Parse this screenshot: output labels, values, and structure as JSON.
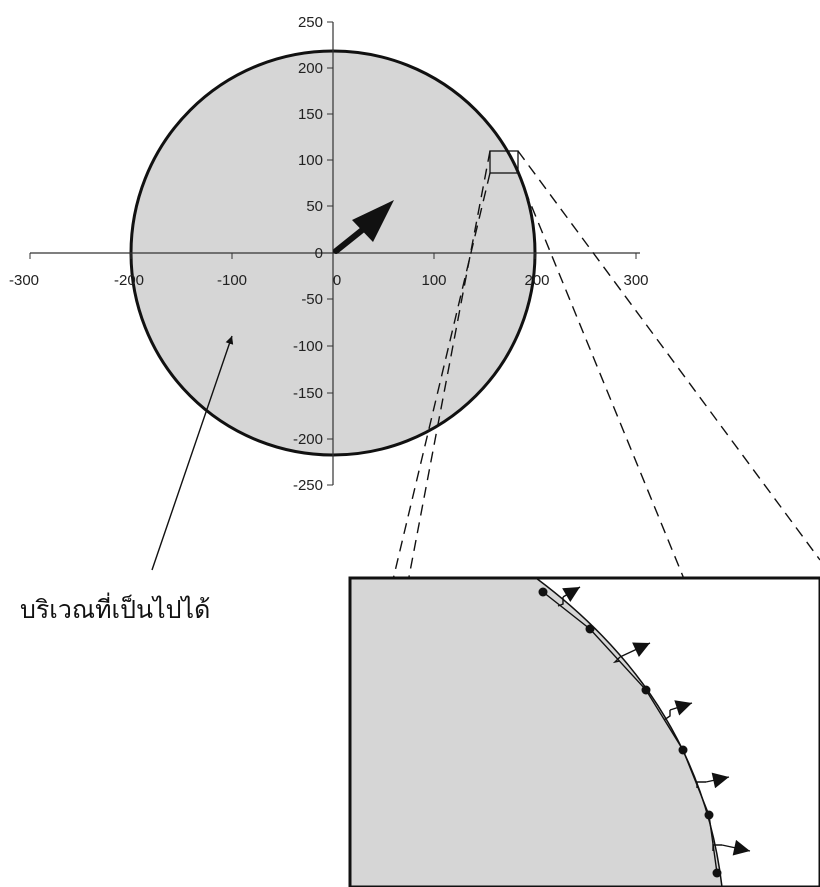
{
  "colors": {
    "region_fill": "#d6d6d6",
    "boundary": "#111111",
    "axis": "#333333",
    "background": "#ffffff"
  },
  "chart_data": {
    "type": "scatter",
    "xlim": [
      -300,
      300
    ],
    "ylim": [
      -250,
      250
    ],
    "x_ticks": [
      "-300",
      "-200",
      "-100",
      "0",
      "100",
      "200",
      "300"
    ],
    "y_ticks": [
      "250",
      "200",
      "150",
      "100",
      "50",
      "0",
      "-50",
      "-100",
      "-150",
      "-200",
      "-250"
    ],
    "feasible_region": {
      "shape": "circle",
      "center": [
        0,
        0
      ],
      "radius": 200
    },
    "direction_vector": {
      "from": [
        0,
        0
      ],
      "to": [
        60,
        50
      ]
    },
    "zoom_window": {
      "x_range": [
        155,
        185
      ],
      "y_range": [
        85,
        110
      ]
    },
    "grid": false
  },
  "annotation": {
    "region_label": "บริเวณที่เป็นไปได้"
  },
  "icons": {
    "pointer": "arrow-icon",
    "direction": "direction-arrow-icon",
    "normal": "normal-arrow-icon"
  }
}
